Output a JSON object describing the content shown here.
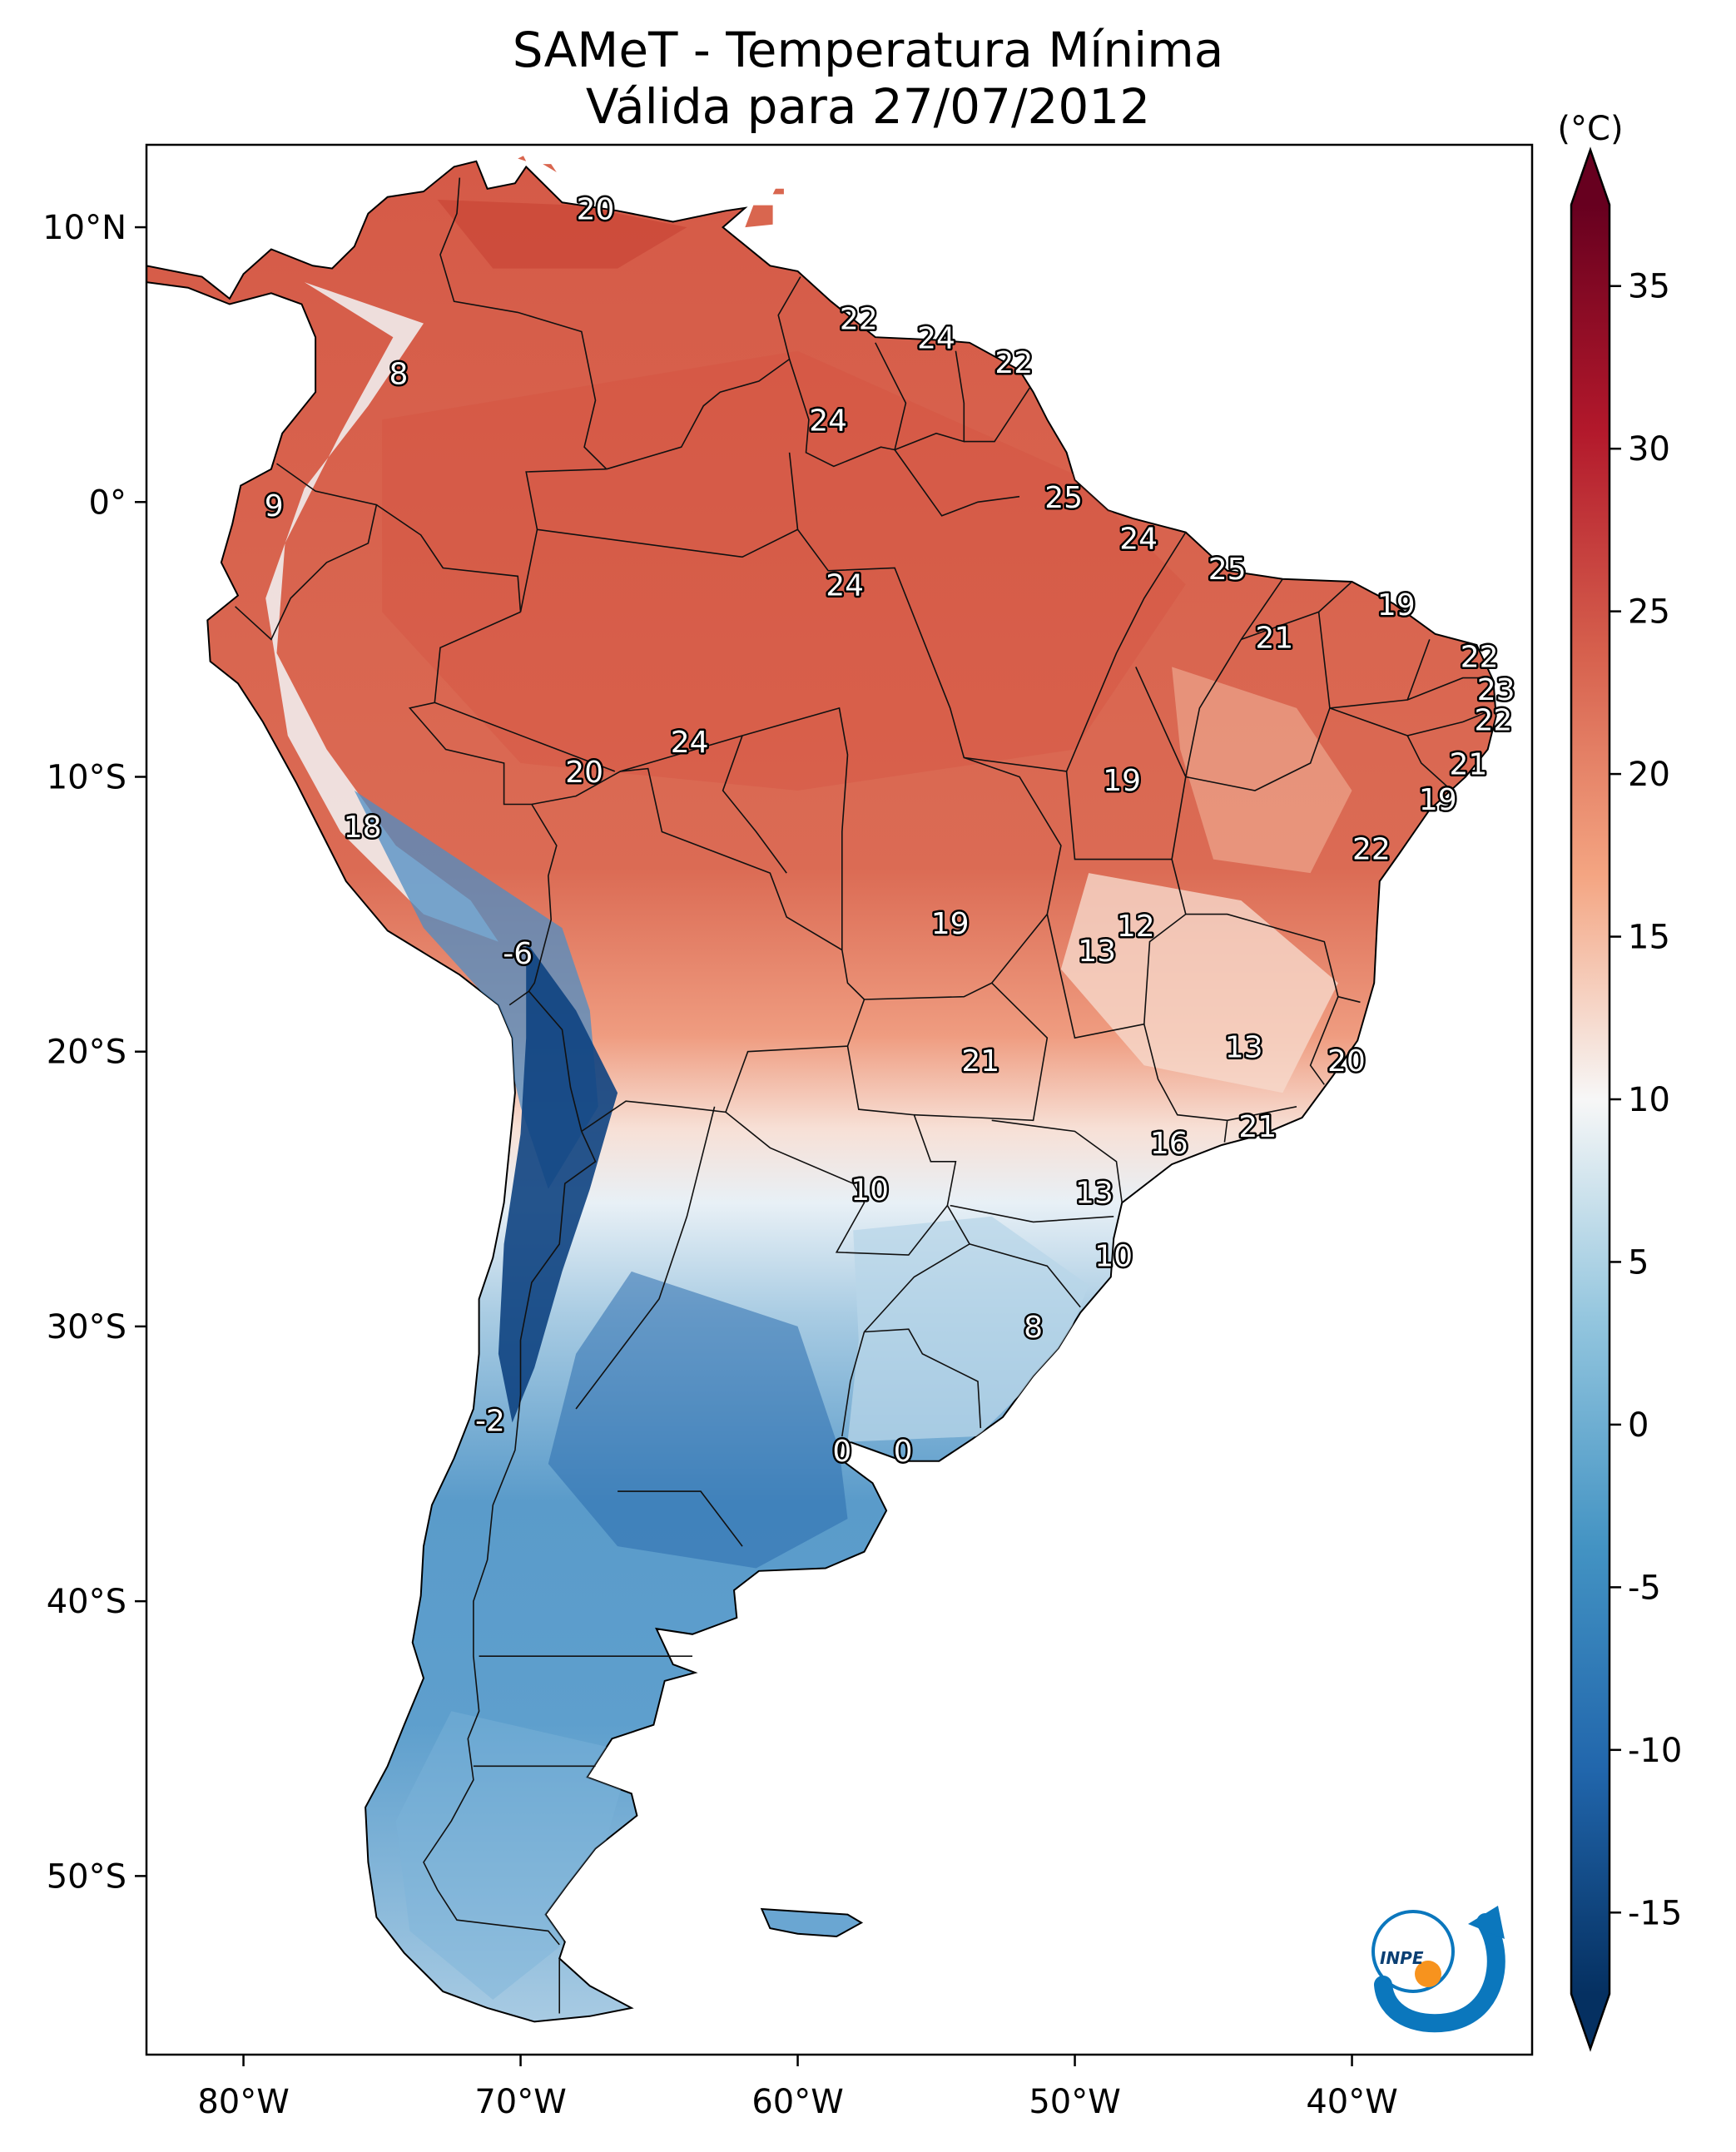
{
  "title": {
    "line1": "SAMeT - Temperatura Mínima",
    "line2": "Válida para 27/07/2012"
  },
  "map": {
    "lon_ticks": [
      {
        "value": -80,
        "label": "80°W"
      },
      {
        "value": -70,
        "label": "70°W"
      },
      {
        "value": -60,
        "label": "60°W"
      },
      {
        "value": -50,
        "label": "50°W"
      },
      {
        "value": -40,
        "label": "40°W"
      }
    ],
    "lat_ticks": [
      {
        "value": 10,
        "label": "10°N"
      },
      {
        "value": 0,
        "label": "0°"
      },
      {
        "value": -10,
        "label": "10°S"
      },
      {
        "value": -20,
        "label": "20°S"
      },
      {
        "value": -30,
        "label": "30°S"
      },
      {
        "value": -40,
        "label": "40°S"
      },
      {
        "value": -50,
        "label": "50°S"
      }
    ],
    "lon_range": [
      -83.5,
      -33.5
    ],
    "lat_range": [
      -56.5,
      13
    ]
  },
  "station_labels": [
    {
      "text": "20",
      "lon": -67.3,
      "lat": 10.6
    },
    {
      "text": "22",
      "lon": -57.8,
      "lat": 6.6
    },
    {
      "text": "24",
      "lon": -55.0,
      "lat": 5.9
    },
    {
      "text": "22",
      "lon": -52.2,
      "lat": 5.0
    },
    {
      "text": "8",
      "lon": -74.4,
      "lat": 4.6
    },
    {
      "text": "24",
      "lon": -58.9,
      "lat": 2.9
    },
    {
      "text": "25",
      "lon": -50.4,
      "lat": 0.1
    },
    {
      "text": "9",
      "lon": -78.9,
      "lat": -0.2
    },
    {
      "text": "24",
      "lon": -47.7,
      "lat": -1.4
    },
    {
      "text": "25",
      "lon": -44.5,
      "lat": -2.5
    },
    {
      "text": "24",
      "lon": -58.3,
      "lat": -3.1
    },
    {
      "text": "19",
      "lon": -38.4,
      "lat": -3.8
    },
    {
      "text": "21",
      "lon": -42.8,
      "lat": -5.0
    },
    {
      "text": "22",
      "lon": -35.4,
      "lat": -5.7
    },
    {
      "text": "23",
      "lon": -34.8,
      "lat": -6.9
    },
    {
      "text": "22",
      "lon": -34.9,
      "lat": -8.0
    },
    {
      "text": "24",
      "lon": -63.9,
      "lat": -8.8
    },
    {
      "text": "21",
      "lon": -35.8,
      "lat": -9.6
    },
    {
      "text": "20",
      "lon": -67.7,
      "lat": -9.9
    },
    {
      "text": "19",
      "lon": -48.3,
      "lat": -10.2
    },
    {
      "text": "19",
      "lon": -36.9,
      "lat": -10.9
    },
    {
      "text": "18",
      "lon": -75.7,
      "lat": -11.9
    },
    {
      "text": "22",
      "lon": -39.3,
      "lat": -12.7
    },
    {
      "text": "19",
      "lon": -54.5,
      "lat": -15.4
    },
    {
      "text": "12",
      "lon": -47.8,
      "lat": -15.5
    },
    {
      "text": "13",
      "lon": -49.2,
      "lat": -16.4
    },
    {
      "text": "-6",
      "lon": -70.1,
      "lat": -16.5
    },
    {
      "text": "13",
      "lon": -43.9,
      "lat": -19.9
    },
    {
      "text": "20",
      "lon": -40.2,
      "lat": -20.4
    },
    {
      "text": "21",
      "lon": -53.4,
      "lat": -20.4
    },
    {
      "text": "21",
      "lon": -43.4,
      "lat": -22.8
    },
    {
      "text": "16",
      "lon": -46.6,
      "lat": -23.4
    },
    {
      "text": "10",
      "lon": -57.4,
      "lat": -25.1
    },
    {
      "text": "13",
      "lon": -49.3,
      "lat": -25.2
    },
    {
      "text": "10",
      "lon": -48.6,
      "lat": -27.5
    },
    {
      "text": "8",
      "lon": -51.5,
      "lat": -30.1
    },
    {
      "text": "-2",
      "lon": -71.1,
      "lat": -33.5
    },
    {
      "text": "0",
      "lon": -58.4,
      "lat": -34.6
    },
    {
      "text": "0",
      "lon": -56.2,
      "lat": -34.6
    }
  ],
  "colorbar": {
    "unit": "(°C)",
    "min": -17.5,
    "max": 37.5,
    "ticks": [
      {
        "value": 35,
        "label": "35"
      },
      {
        "value": 30,
        "label": "30"
      },
      {
        "value": 25,
        "label": "25"
      },
      {
        "value": 20,
        "label": "20"
      },
      {
        "value": 15,
        "label": "15"
      },
      {
        "value": 10,
        "label": "10"
      },
      {
        "value": 5,
        "label": "5"
      },
      {
        "value": 0,
        "label": "0"
      },
      {
        "value": -5,
        "label": "-5"
      },
      {
        "value": -10,
        "label": "-10"
      },
      {
        "value": -15,
        "label": "-15"
      }
    ],
    "colors": [
      "#053061",
      "#2166ac",
      "#4393c3",
      "#92c5de",
      "#f7f7f7",
      "#f4a582",
      "#d6604d",
      "#b2182b",
      "#67001f"
    ]
  },
  "colors": {
    "warm": "#d8604c",
    "hot": "#c0392b",
    "mild": "#f2b9a0",
    "cool": "#cfe2ee",
    "cold": "#5b9bcc",
    "frigid": "#1f5f99",
    "logo_blue": "#0b77bd",
    "logo_orange": "#f7931e"
  },
  "logo": {
    "text": "INPE"
  }
}
